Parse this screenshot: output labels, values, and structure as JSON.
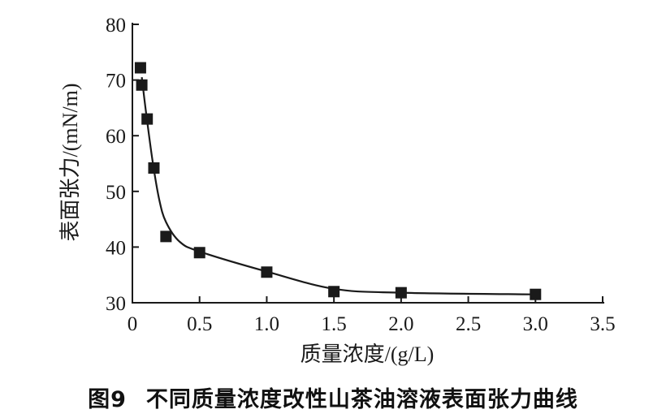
{
  "chart_data": {
    "type": "scatter",
    "title": "",
    "xlabel": "质量浓度/(g/L)",
    "ylabel": "表面张力/(mN/m)",
    "xlim": [
      0,
      3.5
    ],
    "ylim": [
      30,
      80
    ],
    "xticks": [
      "0",
      "0.5",
      "1.0",
      "1.5",
      "2.0",
      "2.5",
      "3.0",
      "3.5"
    ],
    "yticks": [
      "30",
      "40",
      "50",
      "60",
      "70",
      "80"
    ],
    "grid": false,
    "points": [
      {
        "x": 0.06,
        "y": 72.2
      },
      {
        "x": 0.07,
        "y": 69.1
      },
      {
        "x": 0.11,
        "y": 63.0
      },
      {
        "x": 0.16,
        "y": 54.2
      },
      {
        "x": 0.25,
        "y": 41.9
      },
      {
        "x": 0.5,
        "y": 39.0
      },
      {
        "x": 1.0,
        "y": 35.5
      },
      {
        "x": 1.5,
        "y": 32.0
      },
      {
        "x": 2.0,
        "y": 31.8
      },
      {
        "x": 3.0,
        "y": 31.5
      }
    ],
    "fit_line": [
      [
        0.07,
        70.5
      ],
      [
        0.1,
        64.5
      ],
      [
        0.15,
        55.5
      ],
      [
        0.2,
        48.5
      ],
      [
        0.25,
        44.5
      ],
      [
        0.35,
        41.0
      ],
      [
        0.5,
        39.2
      ],
      [
        1.0,
        35.6
      ],
      [
        1.5,
        32.5
      ],
      [
        2.0,
        31.8
      ],
      [
        3.0,
        31.5
      ]
    ],
    "marker_color": "#1a1a1a",
    "line_color": "#1a1a1a"
  },
  "caption": {
    "figure_number": "图9",
    "text": "不同质量浓度改性山茶油溶液表面张力曲线"
  }
}
